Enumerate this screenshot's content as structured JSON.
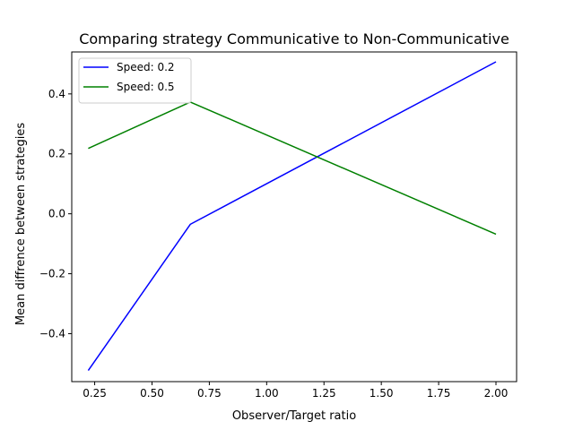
{
  "chart_data": {
    "type": "line",
    "title": "Comparing strategy Communicative to Non-Communicative",
    "xlabel": "Observer/Target ratio",
    "ylabel": "Mean diffrence between strategies",
    "xlim": [
      0.15,
      2.09
    ],
    "ylim": [
      -0.56,
      0.54
    ],
    "xticks": [
      {
        "value": 0.25,
        "label": "0.25"
      },
      {
        "value": 0.5,
        "label": "0.50"
      },
      {
        "value": 0.75,
        "label": "0.75"
      },
      {
        "value": 1.0,
        "label": "1.00"
      },
      {
        "value": 1.25,
        "label": "1.25"
      },
      {
        "value": 1.5,
        "label": "1.50"
      },
      {
        "value": 1.75,
        "label": "1.75"
      },
      {
        "value": 2.0,
        "label": "2.00"
      }
    ],
    "yticks": [
      {
        "value": -0.4,
        "label": "−0.4"
      },
      {
        "value": -0.2,
        "label": "−0.2"
      },
      {
        "value": 0.0,
        "label": "0.0"
      },
      {
        "value": 0.2,
        "label": "0.2"
      },
      {
        "value": 0.4,
        "label": "0.4"
      }
    ],
    "grid": false,
    "legend_position": "top-left",
    "series": [
      {
        "name": "Speed: 0.2",
        "color": "#0000ff",
        "x": [
          0.222,
          0.667,
          2.0
        ],
        "y": [
          -0.523,
          -0.035,
          0.507
        ]
      },
      {
        "name": "Speed: 0.5",
        "color": "#008000",
        "x": [
          0.222,
          0.667,
          2.0
        ],
        "y": [
          0.218,
          0.373,
          -0.068
        ]
      }
    ]
  }
}
